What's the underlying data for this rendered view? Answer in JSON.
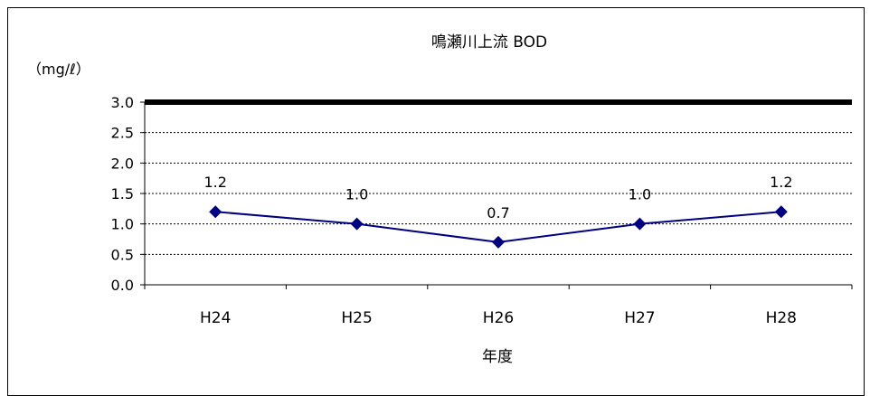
{
  "chart_data": {
    "type": "line",
    "title": "鳴瀬川上流 BOD",
    "ylabel": "（mg/ℓ）",
    "xlabel": "年度",
    "categories": [
      "H24",
      "H25",
      "H26",
      "H27",
      "H28"
    ],
    "series": [
      {
        "values": [
          1.2,
          1.0,
          0.7,
          1.0,
          1.2
        ]
      }
    ],
    "data_labels": [
      "1.2",
      "1.0",
      "0.7",
      "1.0",
      "1.2"
    ],
    "yticks": [
      "0.0",
      "0.5",
      "1.0",
      "1.5",
      "2.0",
      "2.5",
      "3.0"
    ],
    "ylim": [
      0,
      3.0
    ],
    "reference_line": 3.0,
    "grid": true,
    "line_color": "#000080",
    "marker": "diamond"
  }
}
